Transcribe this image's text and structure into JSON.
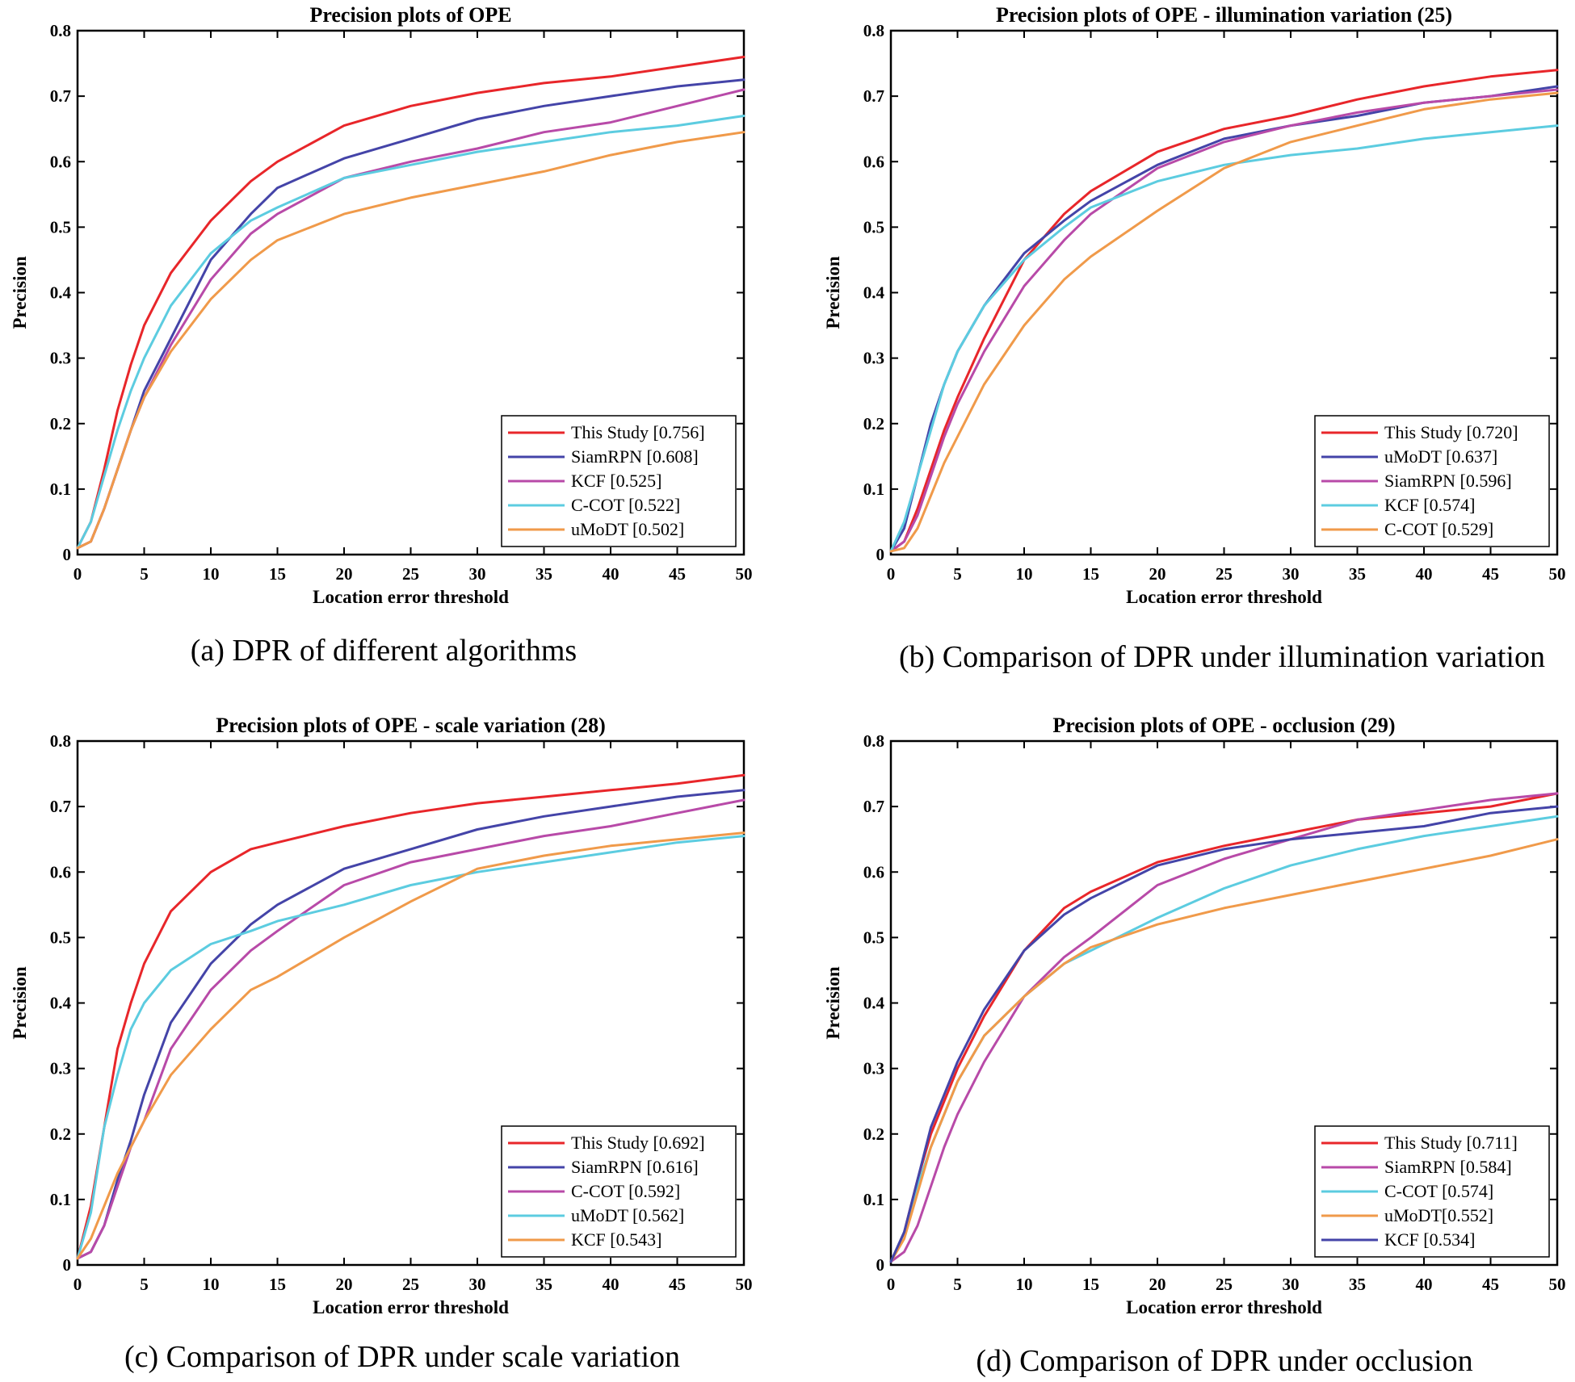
{
  "chart_data": [
    {
      "type": "line",
      "title": "Precision plots of OPE",
      "caption": "(a) DPR of different algorithms",
      "xlabel": "Location error threshold",
      "ylabel": "Precision",
      "xlim": [
        0,
        50
      ],
      "ylim": [
        0,
        0.8
      ],
      "xticks": [
        "0",
        "5",
        "10",
        "15",
        "20",
        "25",
        "30",
        "35",
        "40",
        "45",
        "50"
      ],
      "yticks": [
        "0",
        "0.1",
        "0.2",
        "0.3",
        "0.4",
        "0.5",
        "0.6",
        "0.7",
        "0.8"
      ],
      "grid": false,
      "legend_position": "bottom-right",
      "x": [
        0,
        1,
        2,
        3,
        4,
        5,
        7,
        10,
        13,
        15,
        20,
        25,
        30,
        35,
        40,
        45,
        50
      ],
      "series": [
        {
          "name": "This Study [0.756]",
          "color": "#e8262a",
          "values": [
            0.01,
            0.05,
            0.13,
            0.22,
            0.29,
            0.35,
            0.43,
            0.51,
            0.57,
            0.6,
            0.655,
            0.685,
            0.705,
            0.72,
            0.73,
            0.745,
            0.76
          ]
        },
        {
          "name": "SiamRPN [0.608]",
          "color": "#4444a8",
          "values": [
            0.01,
            0.02,
            0.07,
            0.13,
            0.19,
            0.25,
            0.33,
            0.45,
            0.52,
            0.56,
            0.605,
            0.635,
            0.665,
            0.685,
            0.7,
            0.715,
            0.725
          ]
        },
        {
          "name": "KCF [0.525]",
          "color": "#b84aa8",
          "values": [
            0.01,
            0.02,
            0.07,
            0.13,
            0.19,
            0.24,
            0.32,
            0.42,
            0.49,
            0.52,
            0.575,
            0.6,
            0.62,
            0.645,
            0.66,
            0.685,
            0.71
          ]
        },
        {
          "name": "C-COT [0.522]",
          "color": "#5ccce0",
          "values": [
            0.01,
            0.05,
            0.12,
            0.19,
            0.25,
            0.3,
            0.38,
            0.46,
            0.51,
            0.53,
            0.575,
            0.595,
            0.615,
            0.63,
            0.645,
            0.655,
            0.67
          ]
        },
        {
          "name": "uMoDT [0.502]",
          "color": "#f09a4a",
          "values": [
            0.01,
            0.02,
            0.07,
            0.13,
            0.19,
            0.24,
            0.31,
            0.39,
            0.45,
            0.48,
            0.52,
            0.545,
            0.565,
            0.585,
            0.61,
            0.63,
            0.645
          ]
        }
      ]
    },
    {
      "type": "line",
      "title": "Precision plots of OPE - illumination variation (25)",
      "caption": "(b) Comparison of DPR under illumination variation",
      "xlabel": "Location error threshold",
      "ylabel": "Precision",
      "xlim": [
        0,
        50
      ],
      "ylim": [
        0,
        0.8
      ],
      "xticks": [
        "0",
        "5",
        "10",
        "15",
        "20",
        "25",
        "30",
        "35",
        "40",
        "45",
        "50"
      ],
      "yticks": [
        "0",
        "0.1",
        "0.2",
        "0.3",
        "0.4",
        "0.5",
        "0.6",
        "0.7",
        "0.8"
      ],
      "grid": false,
      "legend_position": "bottom-right",
      "x": [
        0,
        1,
        2,
        3,
        4,
        5,
        7,
        10,
        13,
        15,
        20,
        25,
        30,
        35,
        40,
        45,
        50
      ],
      "series": [
        {
          "name": "This Study [0.720]",
          "color": "#e8262a",
          "values": [
            0.005,
            0.02,
            0.07,
            0.13,
            0.19,
            0.24,
            0.33,
            0.45,
            0.52,
            0.555,
            0.615,
            0.65,
            0.67,
            0.695,
            0.715,
            0.73,
            0.74
          ]
        },
        {
          "name": "uMoDT [0.637]",
          "color": "#4444a8",
          "values": [
            0.005,
            0.04,
            0.12,
            0.2,
            0.26,
            0.31,
            0.38,
            0.46,
            0.51,
            0.54,
            0.595,
            0.635,
            0.655,
            0.67,
            0.69,
            0.7,
            0.715
          ]
        },
        {
          "name": "SiamRPN [0.596]",
          "color": "#b84aa8",
          "values": [
            0.005,
            0.02,
            0.06,
            0.12,
            0.18,
            0.23,
            0.31,
            0.41,
            0.48,
            0.52,
            0.59,
            0.63,
            0.655,
            0.675,
            0.69,
            0.7,
            0.71
          ]
        },
        {
          "name": "KCF [0.574]",
          "color": "#5ccce0",
          "values": [
            0.005,
            0.05,
            0.12,
            0.19,
            0.26,
            0.31,
            0.38,
            0.45,
            0.5,
            0.53,
            0.57,
            0.595,
            0.61,
            0.62,
            0.635,
            0.645,
            0.655
          ]
        },
        {
          "name": "C-COT [0.529]",
          "color": "#f09a4a",
          "values": [
            0.005,
            0.01,
            0.04,
            0.09,
            0.14,
            0.18,
            0.26,
            0.35,
            0.42,
            0.455,
            0.525,
            0.59,
            0.63,
            0.655,
            0.68,
            0.695,
            0.705
          ]
        }
      ]
    },
    {
      "type": "line",
      "title": "Precision plots of OPE - scale variation (28)",
      "caption": "(c) Comparison of DPR under scale variation",
      "xlabel": "Location error threshold",
      "ylabel": "Precision",
      "xlim": [
        0,
        50
      ],
      "ylim": [
        0,
        0.8
      ],
      "xticks": [
        "0",
        "5",
        "10",
        "15",
        "20",
        "25",
        "30",
        "35",
        "40",
        "45",
        "50"
      ],
      "yticks": [
        "0",
        "0.1",
        "0.2",
        "0.3",
        "0.4",
        "0.5",
        "0.6",
        "0.7",
        "0.8"
      ],
      "grid": false,
      "legend_position": "bottom-right",
      "x": [
        0,
        1,
        2,
        3,
        4,
        5,
        7,
        10,
        13,
        15,
        20,
        25,
        30,
        35,
        40,
        45,
        50
      ],
      "series": [
        {
          "name": "This Study [0.692]",
          "color": "#e8262a",
          "values": [
            0.01,
            0.09,
            0.21,
            0.33,
            0.4,
            0.46,
            0.54,
            0.6,
            0.635,
            0.645,
            0.67,
            0.69,
            0.705,
            0.715,
            0.725,
            0.735,
            0.748
          ]
        },
        {
          "name": "SiamRPN [0.616]",
          "color": "#4444a8",
          "values": [
            0.01,
            0.02,
            0.06,
            0.13,
            0.19,
            0.26,
            0.37,
            0.46,
            0.52,
            0.55,
            0.605,
            0.635,
            0.665,
            0.685,
            0.7,
            0.715,
            0.725
          ]
        },
        {
          "name": "C-COT [0.592]",
          "color": "#b84aa8",
          "values": [
            0.01,
            0.02,
            0.06,
            0.12,
            0.18,
            0.22,
            0.33,
            0.42,
            0.48,
            0.51,
            0.58,
            0.615,
            0.635,
            0.655,
            0.67,
            0.69,
            0.71
          ]
        },
        {
          "name": "uMoDT [0.562]",
          "color": "#5ccce0",
          "values": [
            0.01,
            0.08,
            0.21,
            0.29,
            0.36,
            0.4,
            0.45,
            0.49,
            0.51,
            0.525,
            0.55,
            0.58,
            0.6,
            0.615,
            0.63,
            0.645,
            0.655
          ]
        },
        {
          "name": "KCF [0.543]",
          "color": "#f09a4a",
          "values": [
            0.01,
            0.04,
            0.09,
            0.14,
            0.18,
            0.22,
            0.29,
            0.36,
            0.42,
            0.44,
            0.5,
            0.555,
            0.605,
            0.625,
            0.64,
            0.65,
            0.66
          ]
        }
      ]
    },
    {
      "type": "line",
      "title": "Precision plots of OPE - occlusion (29)",
      "caption": "(d) Comparison of DPR under occlusion",
      "xlabel": "Location error threshold",
      "ylabel": "Precision",
      "xlim": [
        0,
        50
      ],
      "ylim": [
        0,
        0.8
      ],
      "xticks": [
        "0",
        "5",
        "10",
        "15",
        "20",
        "25",
        "30",
        "35",
        "40",
        "45",
        "50"
      ],
      "yticks": [
        "0",
        "0.1",
        "0.2",
        "0.3",
        "0.4",
        "0.5",
        "0.6",
        "0.7",
        "0.8"
      ],
      "grid": false,
      "legend_position": "bottom-right",
      "x": [
        0,
        1,
        2,
        3,
        4,
        5,
        7,
        10,
        13,
        15,
        20,
        25,
        30,
        35,
        40,
        45,
        50
      ],
      "series": [
        {
          "name": "This Study [0.711]",
          "color": "#e8262a",
          "values": [
            0.005,
            0.05,
            0.13,
            0.2,
            0.25,
            0.3,
            0.38,
            0.48,
            0.545,
            0.57,
            0.615,
            0.64,
            0.66,
            0.68,
            0.69,
            0.7,
            0.72
          ]
        },
        {
          "name": "SiamRPN [0.584]",
          "color": "#b84aa8",
          "values": [
            0.005,
            0.02,
            0.06,
            0.12,
            0.18,
            0.23,
            0.31,
            0.41,
            0.47,
            0.5,
            0.58,
            0.62,
            0.65,
            0.68,
            0.695,
            0.71,
            0.72
          ]
        },
        {
          "name": "C-COT [0.574]",
          "color": "#5ccce0",
          "values": [
            0.005,
            0.05,
            0.12,
            0.18,
            0.23,
            0.28,
            0.35,
            0.41,
            0.46,
            0.48,
            0.53,
            0.575,
            0.61,
            0.635,
            0.655,
            0.67,
            0.685
          ]
        },
        {
          "name": "uMoDT[0.552]",
          "color": "#f09a4a",
          "values": [
            0.005,
            0.04,
            0.11,
            0.18,
            0.23,
            0.28,
            0.35,
            0.41,
            0.46,
            0.485,
            0.52,
            0.545,
            0.565,
            0.585,
            0.605,
            0.625,
            0.65
          ]
        },
        {
          "name": "KCF [0.534]",
          "color": "#4444a8",
          "values": [
            0.005,
            0.05,
            0.13,
            0.21,
            0.26,
            0.31,
            0.39,
            0.48,
            0.535,
            0.56,
            0.61,
            0.635,
            0.65,
            0.66,
            0.67,
            0.69,
            0.7
          ]
        }
      ]
    }
  ]
}
